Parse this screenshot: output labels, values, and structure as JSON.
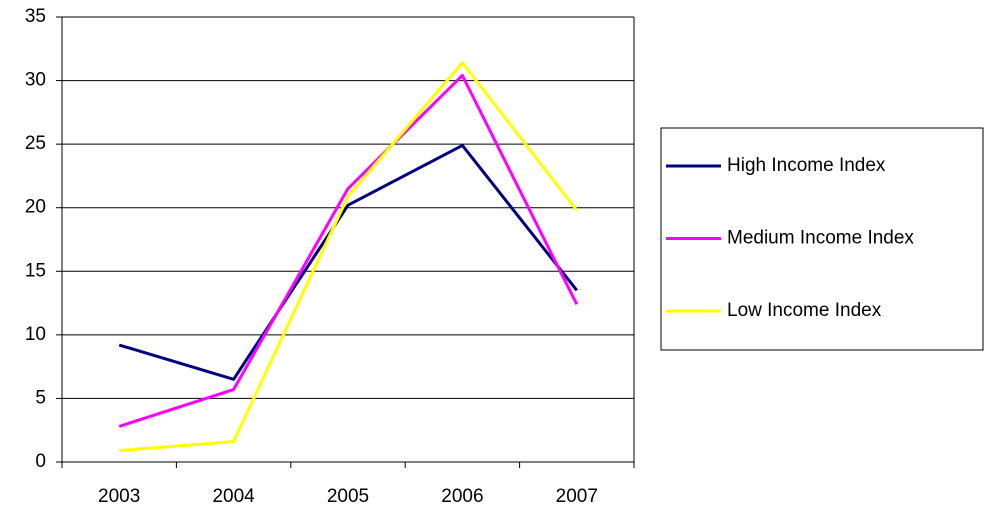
{
  "chart_data": {
    "type": "line",
    "categories": [
      "2003",
      "2004",
      "2005",
      "2006",
      "2007"
    ],
    "series": [
      {
        "name": "High Income Index",
        "color": "#000080",
        "values": [
          9.2,
          6.5,
          20.2,
          24.9,
          13.5
        ]
      },
      {
        "name": "Medium Income Index",
        "color": "#ff00ff",
        "values": [
          2.8,
          5.7,
          21.5,
          30.4,
          12.4
        ]
      },
      {
        "name": "Low Income Index",
        "color": "#ffff00",
        "values": [
          0.9,
          1.6,
          20.9,
          31.4,
          19.8
        ]
      }
    ],
    "ylim": [
      0,
      35
    ],
    "yticks": [
      0,
      5,
      10,
      15,
      20,
      25,
      30,
      35
    ],
    "grid": true,
    "legend": "right"
  }
}
